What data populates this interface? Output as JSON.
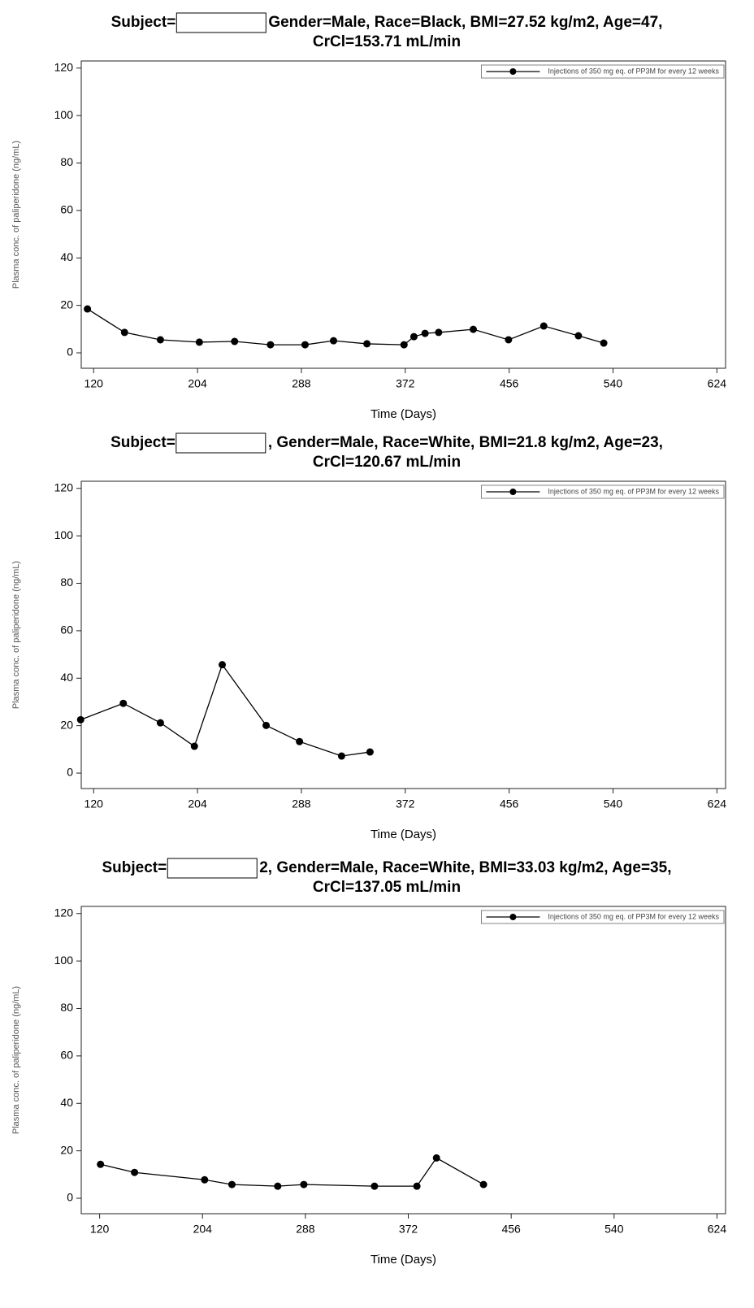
{
  "chart_data": [
    {
      "type": "line",
      "subject_label": "Subject=",
      "title": "Gender=Male, Race=Black, BMI=27.52 kg/m2, Age=47,",
      "subtitle": "CrCl=153.71 mL/min",
      "x_label": "Time (Days)",
      "y_label": "Plasma conc. of paliperidone (ng/mL)",
      "xlim": [
        110,
        631
      ],
      "ylim": [
        -6.5,
        123
      ],
      "xticks": [
        120,
        204,
        288,
        372,
        456,
        540,
        624
      ],
      "yticks": [
        0,
        20,
        40,
        60,
        80,
        100,
        120
      ],
      "legend": "upper right",
      "series": [
        {
          "name": "Injections of 350 mg eq. of PP3M for every 12 weeks",
          "color": "#000000",
          "x": [
            115,
            145,
            174,
            205.5,
            234,
            263,
            291,
            314,
            341,
            371,
            379,
            388,
            399,
            427,
            455.5,
            484,
            512,
            532.5
          ],
          "values": [
            18.5,
            8.6,
            5.5,
            4.5,
            4.8,
            3.4,
            3.4,
            5.1,
            3.8,
            3.4,
            6.8,
            8.2,
            8.6,
            9.9,
            5.5,
            11.3,
            7.2,
            4.1
          ]
        }
      ]
    },
    {
      "type": "line",
      "subject_label": "Subject=",
      "title": ", Gender=Male, Race=White, BMI=21.8 kg/m2, Age=23,",
      "subtitle": "CrCl=120.67 mL/min",
      "x_label": "Time (Days)",
      "y_label": "Plasma conc. of paliperidone (ng/mL)",
      "xlim": [
        110,
        631
      ],
      "ylim": [
        -6.5,
        123
      ],
      "xticks": [
        120,
        204,
        288,
        372,
        456,
        540,
        624
      ],
      "yticks": [
        0,
        20,
        40,
        60,
        80,
        100,
        120
      ],
      "legend": "upper right",
      "series": [
        {
          "name": "Injections of 350 mg eq. of PP3M for every 12 weeks",
          "color": "#000000",
          "x": [
            109.5,
            144,
            174,
            201.5,
            224,
            259.5,
            286.5,
            320.5,
            343.5
          ],
          "values": [
            22.5,
            29.4,
            21.2,
            11.3,
            45.7,
            20.1,
            13.3,
            7.2,
            8.9
          ]
        }
      ]
    },
    {
      "type": "line",
      "subject_label": "Subject=",
      "title": "2, Gender=Male, Race=White, BMI=33.03 kg/m2, Age=35,",
      "subtitle": "CrCl=137.05 mL/min",
      "x_label": "Time (Days)",
      "y_label": "Plasma conc. of paliperidone (ng/mL)",
      "xlim": [
        105,
        631
      ],
      "ylim": [
        -6.5,
        123
      ],
      "xticks": [
        120,
        204,
        288,
        372,
        456,
        540,
        624
      ],
      "yticks": [
        0,
        20,
        40,
        60,
        80,
        100,
        120
      ],
      "legend": "upper right",
      "series": [
        {
          "name": "Injections of 350 mg eq. of PP3M for every 12 weeks",
          "color": "#000000",
          "x": [
            120.7,
            148.5,
            205.7,
            228,
            265.4,
            286.7,
            344.4,
            379,
            395,
            433.4
          ],
          "values": [
            14.3,
            10.9,
            7.8,
            5.8,
            5.1,
            5.8,
            5.1,
            5.1,
            17,
            5.8
          ]
        }
      ]
    }
  ]
}
